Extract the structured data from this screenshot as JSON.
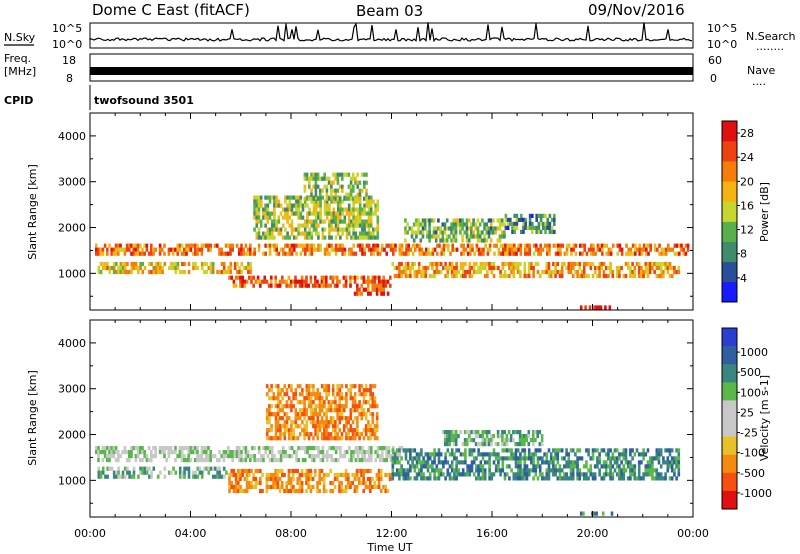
{
  "header": {
    "radar": "Dome C East (fitACF)",
    "beam": "Beam 03",
    "date": "09/Nov/2016"
  },
  "strip": {
    "nsky_label": "N.Sky",
    "nsky_top": "10^5",
    "nsky_bottom": "10^0",
    "nsearch_label": "N.Search",
    "nsearch_dots": "........",
    "nsearch_top": "10^5",
    "nsearch_bottom": "10^0",
    "freq_label_1": "Freq.",
    "freq_label_2": "[MHz]",
    "freq_top": "18",
    "freq_bottom": "8",
    "nave_label": "Nave",
    "nave_dots": "....",
    "nave_top": "60",
    "nave_bottom": "0",
    "cpid_label": "CPID",
    "cpid_value": "twofsound 3501"
  },
  "colors": {
    "power": [
      "#1a1aff",
      "#2a4f9a",
      "#3f8b6a",
      "#57b04a",
      "#c7d62c",
      "#f6b414",
      "#f57d0a",
      "#ee4210",
      "#e01010"
    ],
    "velocity": [
      "#2a3fd0",
      "#2f5fa0",
      "#3a8580",
      "#5ab84a",
      "#c8c8c8",
      "#c8c8c8",
      "#e8c02a",
      "#f58a10",
      "#f55010",
      "#e01010"
    ]
  },
  "chart_data": [
    {
      "type": "heatmap",
      "panel": "power",
      "ylabel": "Slant Range [km]",
      "xlabel": "Time UT",
      "x_ticks": [
        "00:00",
        "04:00",
        "08:00",
        "12:00",
        "16:00",
        "20:00",
        "00:00"
      ],
      "x_range_hours": [
        0,
        24
      ],
      "y_ticks": [
        1000,
        2000,
        3000,
        4000
      ],
      "ylim": [
        200,
        4500
      ],
      "colorbar_label": "Power [dB]",
      "colorbar_ticks": [
        "4",
        "8",
        "12",
        "16",
        "20",
        "24",
        "28"
      ],
      "colorbar_range": [
        0,
        30
      ],
      "bands": [
        {
          "t0": 0.2,
          "t1": 23.8,
          "r0": 1350,
          "r1": 1650,
          "level": 22
        },
        {
          "t0": 0.3,
          "t1": 6.5,
          "r0": 950,
          "r1": 1250,
          "level": 18
        },
        {
          "t0": 5.5,
          "t1": 10.5,
          "r0": 650,
          "r1": 950,
          "level": 24
        },
        {
          "t0": 6.5,
          "t1": 11.5,
          "r0": 1750,
          "r1": 2700,
          "level": 14
        },
        {
          "t0": 8.5,
          "t1": 11.0,
          "r0": 2600,
          "r1": 3200,
          "level": 13
        },
        {
          "t0": 10.5,
          "t1": 12.0,
          "r0": 500,
          "r1": 950,
          "level": 25
        },
        {
          "t0": 12.0,
          "t1": 23.5,
          "r0": 900,
          "r1": 1250,
          "level": 20
        },
        {
          "t0": 12.5,
          "t1": 16.5,
          "r0": 1650,
          "r1": 2200,
          "level": 12
        },
        {
          "t0": 16.5,
          "t1": 18.5,
          "r0": 1900,
          "r1": 2300,
          "level": 9
        },
        {
          "t0": 19.5,
          "t1": 20.8,
          "r0": 220,
          "r1": 300,
          "level": 28
        }
      ]
    },
    {
      "type": "heatmap",
      "panel": "velocity",
      "ylabel": "Slant Range [km]",
      "xlabel": "Time UT",
      "x_ticks": [
        "00:00",
        "04:00",
        "08:00",
        "12:00",
        "16:00",
        "20:00",
        "00:00"
      ],
      "x_range_hours": [
        0,
        24
      ],
      "y_ticks": [
        1000,
        2000,
        3000,
        4000
      ],
      "ylim": [
        200,
        4500
      ],
      "colorbar_label": "Velocity [m s-1]",
      "colorbar_ticks": [
        "1000",
        "500",
        "100",
        "25",
        "-25",
        "-100",
        "-500",
        "-1000"
      ],
      "bands": [
        {
          "t0": 0.2,
          "t1": 12.5,
          "r0": 1400,
          "r1": 1750,
          "level": 4
        },
        {
          "t0": 0.3,
          "t1": 5.5,
          "r0": 1050,
          "r1": 1300,
          "level": 3
        },
        {
          "t0": 5.5,
          "t1": 12.0,
          "r0": 700,
          "r1": 1250,
          "level": 7
        },
        {
          "t0": 7.0,
          "t1": 11.5,
          "r0": 1900,
          "r1": 3100,
          "level": 7
        },
        {
          "t0": 12.0,
          "t1": 23.5,
          "r0": 1000,
          "r1": 1700,
          "level": 2
        },
        {
          "t0": 14.0,
          "t1": 18.0,
          "r0": 1750,
          "r1": 2100,
          "level": 3
        },
        {
          "t0": 19.5,
          "t1": 20.8,
          "r0": 220,
          "r1": 320,
          "level": 2
        }
      ]
    }
  ]
}
